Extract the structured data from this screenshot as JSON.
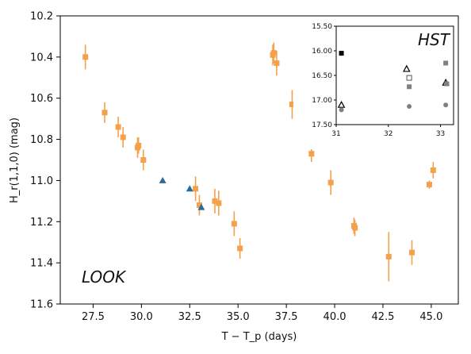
{
  "chart_data": [
    {
      "type": "scatter",
      "title": "",
      "xlabel": "T − T_p (days)",
      "ylabel": "H_r(1,1,0) (mag)",
      "xlim": [
        25.8,
        46.4
      ],
      "ylim": [
        11.6,
        10.2
      ],
      "y_inverted": true,
      "x_ticks": [
        "27.5",
        "30.0",
        "32.5",
        "35.0",
        "37.5",
        "40.0",
        "42.5",
        "45.0"
      ],
      "y_ticks": [
        "10.2",
        "10.4",
        "10.6",
        "10.8",
        "11.0",
        "11.2",
        "11.4",
        "11.6"
      ],
      "annotation": "LOOK",
      "series": [
        {
          "marker": "square",
          "color": "#f5a04a",
          "points": [
            {
              "x": 27.1,
              "y": 10.4,
              "err": 0.06
            },
            {
              "x": 28.1,
              "y": 10.67,
              "err": 0.05
            },
            {
              "x": 28.8,
              "y": 10.74,
              "err": 0.05
            },
            {
              "x": 29.05,
              "y": 10.79,
              "err": 0.05
            },
            {
              "x": 29.8,
              "y": 10.84,
              "err": 0.05
            },
            {
              "x": 29.85,
              "y": 10.83,
              "err": 0.04
            },
            {
              "x": 30.1,
              "y": 10.9,
              "err": 0.05
            },
            {
              "x": 32.8,
              "y": 11.04,
              "err": 0.06
            },
            {
              "x": 33.0,
              "y": 11.12,
              "err": 0.05
            },
            {
              "x": 33.8,
              "y": 11.1,
              "err": 0.06
            },
            {
              "x": 34.0,
              "y": 11.11,
              "err": 0.06
            },
            {
              "x": 34.8,
              "y": 11.21,
              "err": 0.06
            },
            {
              "x": 35.1,
              "y": 11.33,
              "err": 0.05
            },
            {
              "x": 36.8,
              "y": 10.39,
              "err": 0.05
            },
            {
              "x": 36.85,
              "y": 10.38,
              "err": 0.05
            },
            {
              "x": 37.0,
              "y": 10.43,
              "err": 0.06
            },
            {
              "x": 37.8,
              "y": 10.63,
              "err": 0.07
            },
            {
              "x": 38.8,
              "y": 10.87,
              "err": 0.04
            },
            {
              "x": 39.8,
              "y": 11.01,
              "err": 0.06
            },
            {
              "x": 41.0,
              "y": 11.22,
              "err": 0.04
            },
            {
              "x": 41.05,
              "y": 11.23,
              "err": 0.04
            },
            {
              "x": 42.8,
              "y": 11.37,
              "err": 0.12
            },
            {
              "x": 44.0,
              "y": 11.35,
              "err": 0.06
            },
            {
              "x": 44.9,
              "y": 11.02,
              "err": 0.02
            },
            {
              "x": 45.1,
              "y": 10.95,
              "err": 0.04
            }
          ]
        },
        {
          "marker": "triangle",
          "color": "#2c6b99",
          "points": [
            {
              "x": 31.1,
              "y": 11.0
            },
            {
              "x": 32.5,
              "y": 11.04
            },
            {
              "x": 33.1,
              "y": 11.13
            }
          ]
        }
      ]
    },
    {
      "type": "scatter",
      "title": "HST",
      "xlim": [
        31.0,
        33.25
      ],
      "ylim": [
        17.5,
        15.5
      ],
      "y_inverted": true,
      "x_ticks": [
        "31",
        "32",
        "33"
      ],
      "y_ticks": [
        "15.50",
        "16.00",
        "16.50",
        "17.00",
        "17.50"
      ],
      "series": [
        {
          "marker": "square-filled-black",
          "color": "#000000",
          "points": [
            {
              "x": 31.1,
              "y": 16.05
            }
          ]
        },
        {
          "marker": "triangle-open",
          "color": "#000000",
          "points": [
            {
              "x": 31.1,
              "y": 17.1
            },
            {
              "x": 32.35,
              "y": 16.37
            },
            {
              "x": 33.1,
              "y": 16.65
            }
          ]
        },
        {
          "marker": "square-open",
          "color": "#555555",
          "points": [
            {
              "x": 32.4,
              "y": 16.55
            }
          ]
        },
        {
          "marker": "square-filled-grey",
          "color": "#808080",
          "points": [
            {
              "x": 32.4,
              "y": 16.73
            },
            {
              "x": 33.1,
              "y": 16.25
            },
            {
              "x": 33.12,
              "y": 16.67
            }
          ]
        },
        {
          "marker": "circle-filled-grey",
          "color": "#808080",
          "points": [
            {
              "x": 31.1,
              "y": 17.2
            },
            {
              "x": 32.4,
              "y": 17.13
            },
            {
              "x": 33.1,
              "y": 17.1
            }
          ]
        }
      ]
    }
  ]
}
